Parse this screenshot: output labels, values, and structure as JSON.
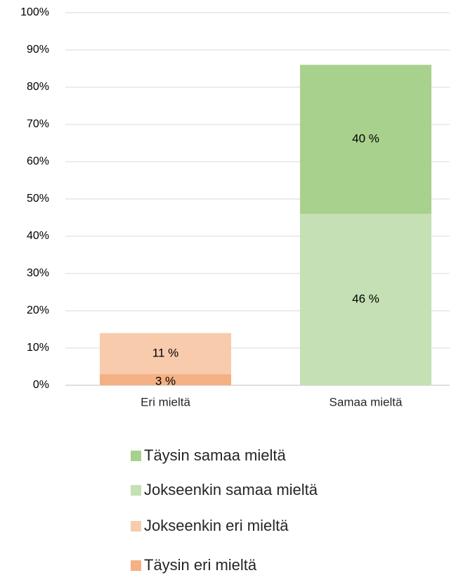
{
  "chart_data": {
    "type": "stacked_bar",
    "categories": [
      "Eri mieltä",
      "Samaa mieltä"
    ],
    "series": [
      {
        "name": "Täysin eri mieltä",
        "color": "#f4b183",
        "values": [
          3,
          null
        ],
        "value_labels": [
          "3 %",
          null
        ]
      },
      {
        "name": "Jokseenkin eri mieltä",
        "color": "#f8cbad",
        "values": [
          11,
          null
        ],
        "value_labels": [
          "11 %",
          null
        ]
      },
      {
        "name": "Jokseenkin samaa mieltä",
        "color": "#c5e0b4",
        "values": [
          null,
          46
        ],
        "value_labels": [
          null,
          "46 %"
        ]
      },
      {
        "name": "Täysin samaa mieltä",
        "color": "#a9d18e",
        "values": [
          null,
          40
        ],
        "value_labels": [
          null,
          "40 %"
        ]
      }
    ],
    "ylim": [
      0,
      100
    ],
    "yticks": [
      {
        "value": 0,
        "label": "0%"
      },
      {
        "value": 10,
        "label": "10%"
      },
      {
        "value": 20,
        "label": "20%"
      },
      {
        "value": 30,
        "label": "30%"
      },
      {
        "value": 40,
        "label": "40%"
      },
      {
        "value": 50,
        "label": "50%"
      },
      {
        "value": 60,
        "label": "60%"
      },
      {
        "value": 70,
        "label": "70%"
      },
      {
        "value": 80,
        "label": "80%"
      },
      {
        "value": 90,
        "label": "90%"
      },
      {
        "value": 100,
        "label": "100%"
      }
    ],
    "grid": true,
    "legend": "bottom"
  }
}
